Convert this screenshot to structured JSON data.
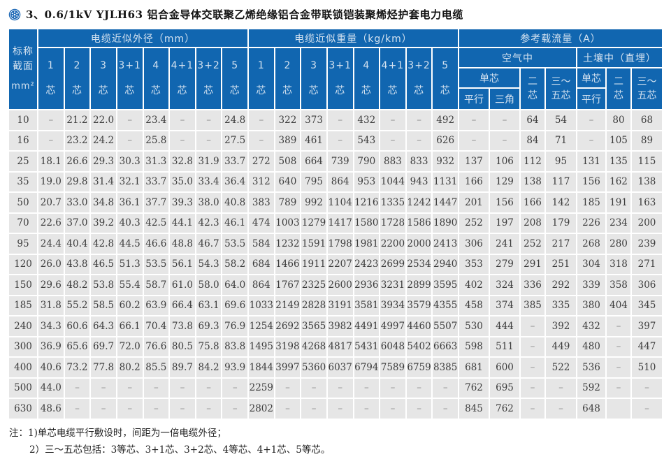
{
  "title": {
    "text": "3、0.6/1kV YJLH63 铝合金导体交联聚乙烯绝缘铝合金带联锁铠装聚烯烃护套电力电缆",
    "icon": "flower-badge-icon",
    "icon_color": "#1b67b5"
  },
  "colors": {
    "header_blue": "#1166b0",
    "header_text": "#d4e2f0",
    "cell_gray": "#e6e6e6",
    "grid_white": "#ffffff"
  },
  "table": {
    "corner": {
      "l1": "标称",
      "l2": "截面",
      "unit": "mm²"
    },
    "groups": [
      {
        "label": "电缆近似外径（mm）"
      },
      {
        "label": "电缆近似重量（kg/km）"
      },
      {
        "label": "参考载流量（A）"
      }
    ],
    "core_cols": [
      "1",
      "2",
      "3",
      "3+1",
      "4",
      "4+1",
      "3+2",
      "5"
    ],
    "core_suffix": "芯",
    "ampacity": {
      "air_label": "空气中",
      "soil_label": "土壤中（直埋）",
      "single_label": "单芯",
      "parallel_label": "平行",
      "triangle_label": "三角",
      "two_l1": "二",
      "two_l2": "芯",
      "multi_l1": "三～",
      "multi_l2": "五芯",
      "soil_single_label": "单芯",
      "soil_parallel_label": "平行"
    },
    "rows": [
      {
        "size": "10",
        "od": [
          "–",
          "21.2",
          "22.0",
          "–",
          "23.4",
          "–",
          "–",
          "24.8"
        ],
        "wt": [
          "–",
          "322",
          "373",
          "–",
          "432",
          "–",
          "–",
          "492"
        ],
        "amp": [
          "–",
          "–",
          "64",
          "54",
          "–",
          "80",
          "68"
        ]
      },
      {
        "size": "16",
        "od": [
          "–",
          "23.2",
          "24.2",
          "–",
          "25.8",
          "–",
          "–",
          "27.5"
        ],
        "wt": [
          "–",
          "389",
          "461",
          "–",
          "543",
          "–",
          "–",
          "626"
        ],
        "amp": [
          "–",
          "–",
          "84",
          "71",
          "–",
          "105",
          "89"
        ]
      },
      {
        "size": "25",
        "od": [
          "18.1",
          "26.6",
          "29.3",
          "30.3",
          "31.3",
          "32.8",
          "31.9",
          "33.7"
        ],
        "wt": [
          "272",
          "508",
          "664",
          "739",
          "790",
          "883",
          "833",
          "932"
        ],
        "amp": [
          "137",
          "106",
          "112",
          "95",
          "131",
          "135",
          "115"
        ]
      },
      {
        "size": "35",
        "od": [
          "19.0",
          "29.8",
          "31.4",
          "32.1",
          "33.7",
          "35.0",
          "33.4",
          "36.4"
        ],
        "wt": [
          "312",
          "640",
          "795",
          "864",
          "953",
          "1044",
          "943",
          "1131"
        ],
        "amp": [
          "166",
          "129",
          "138",
          "117",
          "156",
          "162",
          "138"
        ]
      },
      {
        "size": "50",
        "od": [
          "20.7",
          "33.0",
          "34.8",
          "36.1",
          "37.7",
          "39.3",
          "38.0",
          "40.8"
        ],
        "wt": [
          "383",
          "789",
          "992",
          "1104",
          "1216",
          "1335",
          "1242",
          "1447"
        ],
        "amp": [
          "201",
          "156",
          "166",
          "142",
          "185",
          "191",
          "163"
        ]
      },
      {
        "size": "70",
        "od": [
          "22.6",
          "37.0",
          "39.2",
          "40.3",
          "42.5",
          "44.1",
          "42.3",
          "46.1"
        ],
        "wt": [
          "474",
          "1003",
          "1279",
          "1417",
          "1580",
          "1728",
          "1586",
          "1890"
        ],
        "amp": [
          "252",
          "197",
          "208",
          "179",
          "226",
          "234",
          "200"
        ]
      },
      {
        "size": "95",
        "od": [
          "24.4",
          "40.4",
          "42.8",
          "44.5",
          "46.6",
          "48.8",
          "46.7",
          "53.5"
        ],
        "wt": [
          "584",
          "1232",
          "1591",
          "1798",
          "1981",
          "2200",
          "2000",
          "2413"
        ],
        "amp": [
          "306",
          "241",
          "252",
          "217",
          "268",
          "280",
          "239"
        ]
      },
      {
        "size": "120",
        "od": [
          "26.0",
          "43.8",
          "46.5",
          "51.3",
          "53.5",
          "56.1",
          "54.3",
          "58.2"
        ],
        "wt": [
          "684",
          "1466",
          "1911",
          "2207",
          "2423",
          "2699",
          "2534",
          "2940"
        ],
        "amp": [
          "353",
          "279",
          "291",
          "251",
          "304",
          "318",
          "271"
        ]
      },
      {
        "size": "150",
        "od": [
          "29.6",
          "48.2",
          "53.8",
          "55.4",
          "58.7",
          "61.0",
          "58.0",
          "64.0"
        ],
        "wt": [
          "864",
          "1767",
          "2325",
          "2600",
          "2936",
          "3231",
          "2899",
          "3595"
        ],
        "amp": [
          "402",
          "324",
          "336",
          "292",
          "339",
          "358",
          "306"
        ]
      },
      {
        "size": "185",
        "od": [
          "31.8",
          "55.2",
          "58.5",
          "60.2",
          "63.9",
          "66.4",
          "63.1",
          "69.6"
        ],
        "wt": [
          "1033",
          "2149",
          "2828",
          "3191",
          "3581",
          "3934",
          "3579",
          "4355"
        ],
        "amp": [
          "458",
          "374",
          "385",
          "335",
          "380",
          "404",
          "345"
        ]
      },
      {
        "size": "240",
        "od": [
          "34.3",
          "60.6",
          "64.3",
          "66.1",
          "70.4",
          "73.8",
          "69.3",
          "76.9"
        ],
        "wt": [
          "1254",
          "2692",
          "3565",
          "3982",
          "4491",
          "4997",
          "4460",
          "5507"
        ],
        "amp": [
          "530",
          "444",
          "–",
          "392",
          "432",
          "–",
          "397"
        ]
      },
      {
        "size": "300",
        "od": [
          "36.9",
          "65.6",
          "69.7",
          "72.0",
          "76.6",
          "80.5",
          "75.8",
          "83.8"
        ],
        "wt": [
          "1495",
          "3198",
          "4268",
          "4817",
          "5431",
          "6048",
          "5402",
          "6663"
        ],
        "amp": [
          "598",
          "511",
          "–",
          "449",
          "480",
          "–",
          "447"
        ]
      },
      {
        "size": "400",
        "od": [
          "40.6",
          "73.2",
          "77.8",
          "80.2",
          "85.5",
          "89.7",
          "84.2",
          "93.9"
        ],
        "wt": [
          "1844",
          "3997",
          "5360",
          "6037",
          "6794",
          "7589",
          "6759",
          "8385"
        ],
        "amp": [
          "681",
          "600",
          "–",
          "522",
          "536",
          "–",
          "510"
        ]
      },
      {
        "size": "500",
        "od": [
          "44.0",
          "–",
          "–",
          "–",
          "–",
          "–",
          "–",
          "–"
        ],
        "wt": [
          "2259",
          "–",
          "–",
          "–",
          "–",
          "–",
          "–",
          "–"
        ],
        "amp": [
          "762",
          "695",
          "–",
          "–",
          "592",
          "–",
          "–"
        ]
      },
      {
        "size": "630",
        "od": [
          "48.6",
          "–",
          "–",
          "–",
          "–",
          "–",
          "–",
          "–"
        ],
        "wt": [
          "2802",
          "–",
          "–",
          "–",
          "–",
          "–",
          "–",
          "–"
        ],
        "amp": [
          "845",
          "762",
          "–",
          "–",
          "648",
          "",
          "–"
        ]
      }
    ]
  },
  "notes": [
    "注：1)单芯电缆平行敷设时，间距为一倍电缆外径；",
    "2）三～五芯包括：3等芯、3+1芯、3+2芯、4等芯、4+1芯、5等芯。"
  ]
}
